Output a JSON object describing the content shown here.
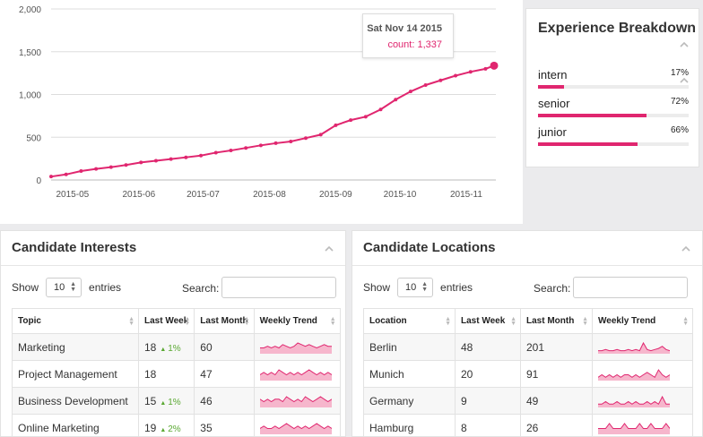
{
  "chart_data": {
    "type": "line",
    "x": [
      "2015-04-21",
      "2015-04-28",
      "2015-05-05",
      "2015-05-12",
      "2015-05-19",
      "2015-05-26",
      "2015-06-02",
      "2015-06-09",
      "2015-06-16",
      "2015-06-23",
      "2015-06-30",
      "2015-07-07",
      "2015-07-14",
      "2015-07-21",
      "2015-07-28",
      "2015-08-04",
      "2015-08-11",
      "2015-08-18",
      "2015-08-25",
      "2015-09-01",
      "2015-09-08",
      "2015-09-15",
      "2015-09-22",
      "2015-09-29",
      "2015-10-06",
      "2015-10-13",
      "2015-10-20",
      "2015-10-27",
      "2015-11-03",
      "2015-11-10",
      "2015-11-14"
    ],
    "values": [
      40,
      65,
      105,
      130,
      150,
      175,
      205,
      225,
      245,
      265,
      285,
      320,
      345,
      375,
      405,
      430,
      450,
      490,
      530,
      640,
      700,
      740,
      825,
      940,
      1035,
      1110,
      1165,
      1220,
      1265,
      1300,
      1337
    ],
    "ylim": [
      0,
      2000
    ],
    "yticks": [
      "0",
      "500",
      "1,000",
      "1,500",
      "2,000"
    ],
    "ytick_values": [
      0,
      500,
      1000,
      1500,
      2000
    ],
    "xticks": [
      "2015-05",
      "2015-06",
      "2015-07",
      "2015-08",
      "2015-09",
      "2015-10",
      "2015-11"
    ],
    "xtick_values": [
      "2015-05-01",
      "2015-06-01",
      "2015-07-01",
      "2015-08-01",
      "2015-09-01",
      "2015-10-01",
      "2015-11-01"
    ],
    "grid": true,
    "color": "#e0266f"
  },
  "tooltip": {
    "date": "Sat Nov 14 2015",
    "count": "count: 1,337"
  },
  "experience": {
    "title": "Experience Breakdown",
    "rows": [
      {
        "label": "intern",
        "pct": "17%",
        "value": 0.17
      },
      {
        "label": "senior",
        "pct": "72%",
        "value": 0.72
      },
      {
        "label": "junior",
        "pct": "66%",
        "value": 0.66
      }
    ]
  },
  "interests": {
    "title": "Candidate Interests",
    "show": "Show",
    "entries_value": "10",
    "entries": "entries",
    "search": "Search:",
    "headers": [
      "Topic",
      "Last Week",
      "Last Month",
      "Weekly Trend"
    ],
    "rows": [
      {
        "topic": "Marketing",
        "week": "18",
        "change": "1%",
        "month": "60",
        "trend": [
          3,
          3,
          4,
          3,
          4,
          3,
          5,
          4,
          3,
          4,
          6,
          5,
          4,
          5,
          4,
          3,
          4,
          5,
          4,
          4
        ]
      },
      {
        "topic": "Project Management",
        "week": "18",
        "change": "",
        "month": "47",
        "trend": [
          2,
          3,
          2,
          3,
          2,
          4,
          3,
          2,
          3,
          2,
          3,
          2,
          3,
          4,
          3,
          2,
          3,
          2,
          3,
          2
        ]
      },
      {
        "topic": "Business Development",
        "week": "15",
        "change": "1%",
        "month": "46",
        "trend": [
          3,
          2,
          3,
          2,
          3,
          3,
          2,
          4,
          3,
          2,
          3,
          2,
          4,
          3,
          2,
          3,
          4,
          3,
          2,
          3
        ]
      },
      {
        "topic": "Online Marketing",
        "week": "19",
        "change": "2%",
        "month": "35",
        "trend": [
          2,
          3,
          2,
          2,
          3,
          2,
          3,
          4,
          3,
          2,
          3,
          2,
          3,
          2,
          3,
          4,
          3,
          2,
          3,
          2
        ]
      }
    ]
  },
  "locations": {
    "title": "Candidate Locations",
    "show": "Show",
    "entries_value": "10",
    "entries": "entries",
    "search": "Search:",
    "headers": [
      "Location",
      "Last Week",
      "Last Month",
      "Weekly Trend"
    ],
    "rows": [
      {
        "location": "Berlin",
        "week": "48",
        "month": "201",
        "trend": [
          2,
          2,
          3,
          2,
          2,
          3,
          2,
          2,
          3,
          2,
          3,
          2,
          9,
          3,
          2,
          3,
          4,
          6,
          3,
          2
        ]
      },
      {
        "location": "Munich",
        "week": "20",
        "month": "91",
        "trend": [
          1,
          2,
          1,
          2,
          1,
          2,
          1,
          2,
          2,
          1,
          2,
          1,
          2,
          3,
          2,
          1,
          4,
          2,
          1,
          2
        ]
      },
      {
        "location": "Germany",
        "week": "9",
        "month": "49",
        "trend": [
          1,
          1,
          2,
          1,
          1,
          2,
          1,
          1,
          2,
          1,
          2,
          1,
          1,
          2,
          1,
          2,
          1,
          4,
          1,
          1
        ]
      },
      {
        "location": "Hamburg",
        "week": "8",
        "month": "26",
        "trend": [
          1,
          1,
          1,
          2,
          1,
          1,
          1,
          2,
          1,
          1,
          1,
          2,
          1,
          1,
          2,
          1,
          1,
          1,
          2,
          1
        ]
      }
    ]
  }
}
